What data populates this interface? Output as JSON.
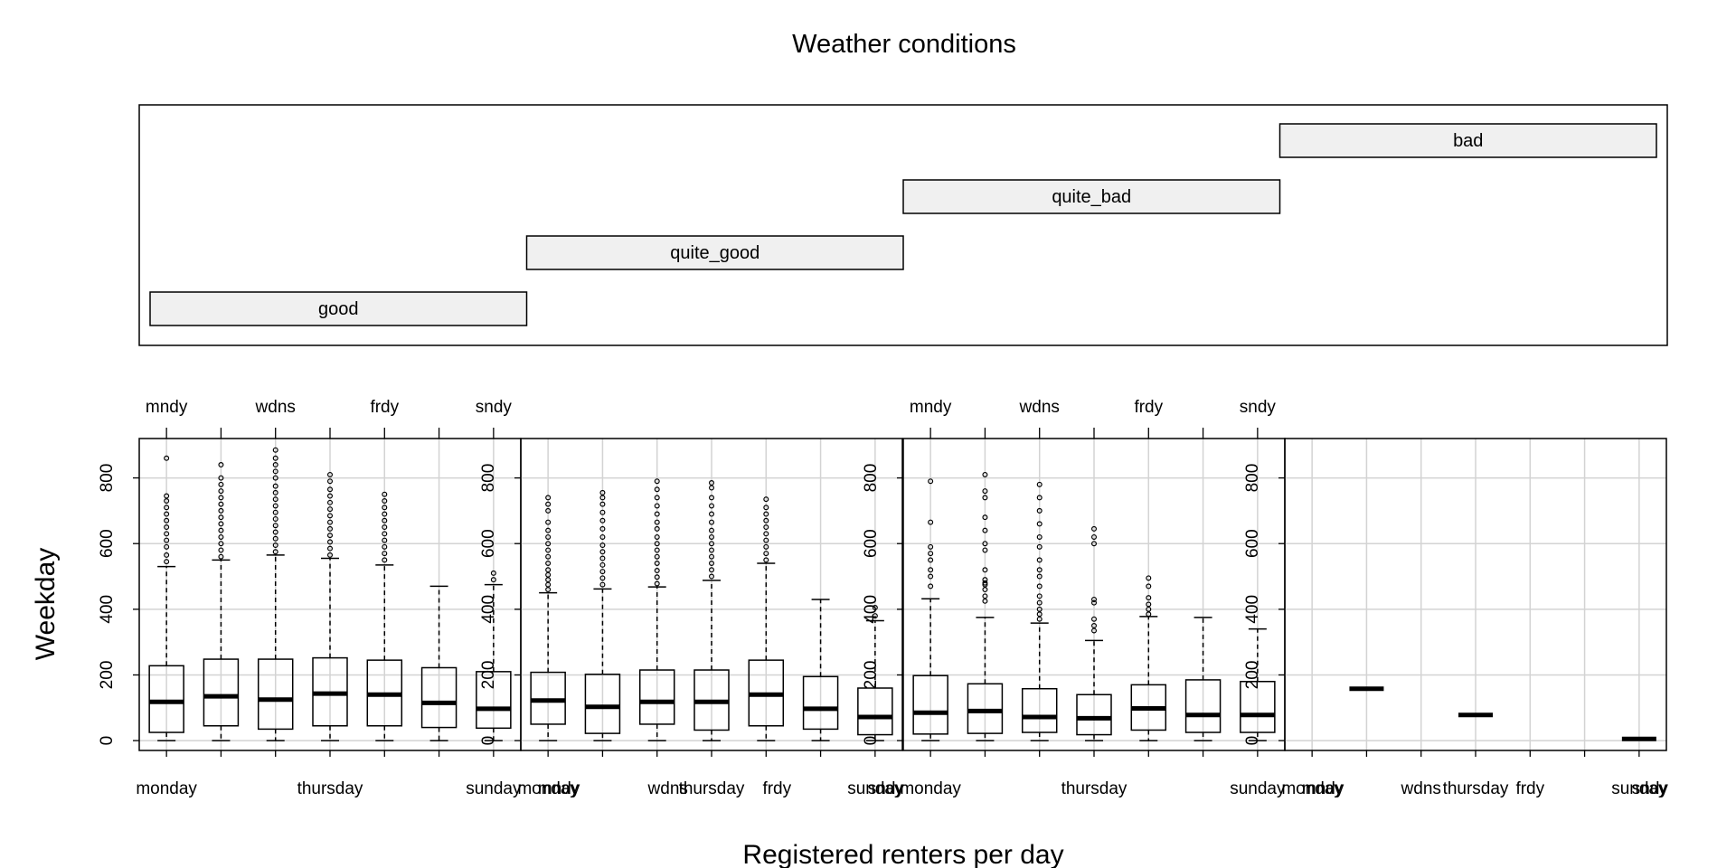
{
  "chart_data": {
    "type": "box",
    "title": "Weather conditions",
    "xlabel": "Registered renters per day",
    "ylabel": "Weekday",
    "ylim": [
      -30,
      920
    ],
    "yticks": [
      0,
      200,
      400,
      600,
      800
    ],
    "grid": true,
    "bottom_tick_labels": [
      "monday",
      "thursday",
      "sunday"
    ],
    "top_tick_labels": [
      "mndy",
      "wdns",
      "frdy",
      "sndy"
    ],
    "panel4_bottom_labels": [
      "monday",
      "wdns",
      "thursday",
      "frdy",
      "sunday"
    ],
    "conditions": [
      "good",
      "quite_good",
      "quite_bad",
      "bad"
    ],
    "panels": [
      {
        "condition": "good",
        "boxes": [
          {
            "wlo": 0,
            "q1": 25,
            "med": 118,
            "q3": 228,
            "whi": 530,
            "out": [
              545,
              565,
              590,
              610,
              630,
              650,
              670,
              690,
              710,
              730,
              745,
              860
            ]
          },
          {
            "wlo": 0,
            "q1": 45,
            "med": 135,
            "q3": 248,
            "whi": 550,
            "out": [
              560,
              580,
              600,
              620,
              640,
              660,
              680,
              700,
              720,
              740,
              760,
              780,
              800,
              840
            ]
          },
          {
            "wlo": 0,
            "q1": 35,
            "med": 125,
            "q3": 248,
            "whi": 565,
            "out": [
              575,
              595,
              615,
              635,
              655,
              675,
              695,
              715,
              735,
              755,
              775,
              800,
              820,
              840,
              860,
              885
            ]
          },
          {
            "wlo": 0,
            "q1": 45,
            "med": 143,
            "q3": 252,
            "whi": 555,
            "out": [
              565,
              585,
              605,
              625,
              645,
              665,
              685,
              705,
              725,
              745,
              765,
              790,
              810
            ]
          },
          {
            "wlo": 0,
            "q1": 45,
            "med": 140,
            "q3": 245,
            "whi": 535,
            "out": [
              550,
              570,
              590,
              610,
              630,
              650,
              670,
              690,
              710,
              730,
              750
            ]
          },
          {
            "wlo": 0,
            "q1": 40,
            "med": 115,
            "q3": 222,
            "whi": 470,
            "out": []
          },
          {
            "wlo": 0,
            "q1": 38,
            "med": 97,
            "q3": 210,
            "whi": 475,
            "out": [
              490,
              510
            ]
          }
        ]
      },
      {
        "condition": "quite_good",
        "boxes": [
          {
            "wlo": 0,
            "q1": 50,
            "med": 122,
            "q3": 208,
            "whi": 450,
            "out": [
              460,
              475,
              490,
              505,
              520,
              540,
              560,
              580,
              600,
              620,
              640,
              665,
              700,
              720,
              740
            ]
          },
          {
            "wlo": 0,
            "q1": 22,
            "med": 103,
            "q3": 202,
            "whi": 462,
            "out": [
              475,
              495,
              515,
              535,
              555,
              575,
              595,
              620,
              645,
              670,
              695,
              720,
              740,
              755
            ]
          },
          {
            "wlo": 0,
            "q1": 50,
            "med": 118,
            "q3": 215,
            "whi": 468,
            "out": [
              478,
              498,
              518,
              540,
              560,
              580,
              600,
              620,
              645,
              665,
              690,
              715,
              740,
              765,
              790
            ]
          },
          {
            "wlo": 0,
            "q1": 32,
            "med": 118,
            "q3": 215,
            "whi": 488,
            "out": [
              500,
              520,
              540,
              560,
              580,
              600,
              620,
              640,
              665,
              690,
              715,
              740,
              770,
              785
            ]
          },
          {
            "wlo": 0,
            "q1": 45,
            "med": 140,
            "q3": 245,
            "whi": 540,
            "out": [
              550,
              570,
              590,
              610,
              630,
              650,
              670,
              690,
              710,
              735
            ]
          },
          {
            "wlo": 0,
            "q1": 35,
            "med": 97,
            "q3": 195,
            "whi": 430,
            "out": []
          },
          {
            "wlo": 0,
            "q1": 18,
            "med": 72,
            "q3": 160,
            "whi": 365,
            "out": [
              380,
              405
            ]
          }
        ]
      },
      {
        "condition": "quite_bad",
        "boxes": [
          {
            "wlo": 0,
            "q1": 20,
            "med": 85,
            "q3": 198,
            "whi": 432,
            "out": [
              470,
              500,
              520,
              550,
              570,
              590,
              665,
              790
            ]
          },
          {
            "wlo": 0,
            "q1": 22,
            "med": 90,
            "q3": 173,
            "whi": 375,
            "out": [
              425,
              440,
              460,
              475,
              480,
              490,
              520,
              580,
              600,
              640,
              680,
              740,
              760,
              810
            ]
          },
          {
            "wlo": 0,
            "q1": 25,
            "med": 72,
            "q3": 158,
            "whi": 358,
            "out": [
              370,
              385,
              400,
              420,
              440,
              470,
              500,
              520,
              550,
              590,
              620,
              660,
              700,
              740,
              780
            ]
          },
          {
            "wlo": 0,
            "q1": 18,
            "med": 68,
            "q3": 140,
            "whi": 305,
            "out": [
              335,
              350,
              370,
              420,
              430,
              600,
              620,
              645
            ]
          },
          {
            "wlo": 0,
            "q1": 32,
            "med": 98,
            "q3": 170,
            "whi": 378,
            "out": [
              385,
              400,
              415,
              435,
              470,
              495
            ]
          },
          {
            "wlo": 0,
            "q1": 25,
            "med": 78,
            "q3": 185,
            "whi": 375,
            "out": []
          },
          {
            "wlo": 0,
            "q1": 25,
            "med": 78,
            "q3": 180,
            "whi": 340,
            "out": []
          }
        ]
      },
      {
        "condition": "bad",
        "boxes": [
          {
            "day": 1,
            "med": 158
          },
          {
            "day": 3,
            "med": 78
          },
          {
            "day": 6,
            "med": 5
          }
        ]
      }
    ]
  }
}
